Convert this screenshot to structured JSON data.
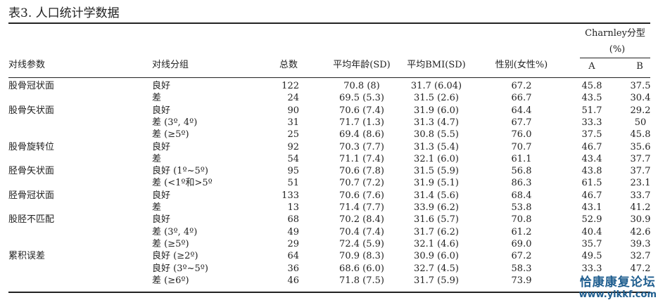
{
  "title": "表3. 人口统计学数据",
  "headers": {
    "param": "对线参数",
    "group": "对线分组",
    "total": "总数",
    "age": "平均年龄(SD)",
    "bmi": "平均BMI(SD)",
    "sex": "性别(女性%)",
    "charnley_line1": "Charnley分型",
    "charnley_line2": "(%)",
    "a": "A",
    "b": "B"
  },
  "rows": [
    {
      "param": "股骨冠状面",
      "group": "良好",
      "total": "122",
      "age": "70.8 (8)",
      "bmi": "31.7 (6.04)",
      "sex": "67.2",
      "a": "45.8",
      "b": "37.5"
    },
    {
      "param": "",
      "group": "差",
      "total": "24",
      "age": "69.5 (5.3)",
      "bmi": "31.5 (2.6)",
      "sex": "66.7",
      "a": "43.5",
      "b": "30.4"
    },
    {
      "param": "股骨矢状面",
      "group": "良好",
      "total": "90",
      "age": "70.6 (7.4)",
      "bmi": "31.9 (6.0)",
      "sex": "64.4",
      "a": "51.7",
      "b": "29.2"
    },
    {
      "param": "",
      "group": "差 (3º, 4º)",
      "total": "31",
      "age": "71.7 (1.3)",
      "bmi": "31.3 (4.7)",
      "sex": "67.7",
      "a": "33.3",
      "b": "50"
    },
    {
      "param": "",
      "group": "差 (≥5º)",
      "total": "25",
      "age": "69.4 (8.6)",
      "bmi": "30.8 (5.5)",
      "sex": "76.0",
      "a": "37.5",
      "b": "45.8"
    },
    {
      "param": "股骨旋转位",
      "group": "良好",
      "total": "92",
      "age": "70.3 (7.7)",
      "bmi": "31.3 (5.4)",
      "sex": "70.7",
      "a": "46.7",
      "b": "35.6"
    },
    {
      "param": "",
      "group": "差",
      "total": "54",
      "age": "71.1 (7.4)",
      "bmi": "32.1 (6.0)",
      "sex": "61.1",
      "a": "43.4",
      "b": "37.7"
    },
    {
      "param": "胫骨矢状面",
      "group": "良好 (1º~5º)",
      "total": "95",
      "age": "70.6 (7.8)",
      "bmi": "31.5 (5.9)",
      "sex": "56.8",
      "a": "43.8",
      "b": "37.7"
    },
    {
      "param": "",
      "group": "差 (<1º和>5º",
      "total": "51",
      "age": "70.7 (7.2)",
      "bmi": "31.9 (5.1)",
      "sex": "86.3",
      "a": "61.5",
      "b": "23.1"
    },
    {
      "param": "胫骨冠状面",
      "group": "良好",
      "total": "133",
      "age": "70.6 (7.6)",
      "bmi": "31.4 (5.6)",
      "sex": "68.4",
      "a": "46.7",
      "b": "33.7"
    },
    {
      "param": "",
      "group": "差",
      "total": "13",
      "age": "71.4 (7.7)",
      "bmi": "33.9 (6.2)",
      "sex": "53.8",
      "a": "43.1",
      "b": "41.2"
    },
    {
      "param": "股胫不匹配",
      "group": "良好",
      "total": "68",
      "age": "70.2 (8.4)",
      "bmi": "31.6 (5.7)",
      "sex": "70.8",
      "a": "52.9",
      "b": "30.9"
    },
    {
      "param": "",
      "group": "差 (3º, 4º)",
      "total": "49",
      "age": "70.4 (7.4)",
      "bmi": "31.7 (6.2)",
      "sex": "61.2",
      "a": "40.4",
      "b": "42.6"
    },
    {
      "param": "",
      "group": "差 (≥5º)",
      "total": "29",
      "age": "72.4 (5.9)",
      "bmi": "32.1 (4.6)",
      "sex": "69.0",
      "a": "35.7",
      "b": "39.3"
    },
    {
      "param": "累积误差",
      "group": "良好 (≥2º)",
      "total": "64",
      "age": "70.9 (8.3)",
      "bmi": "30.9 (6.0)",
      "sex": "67.2",
      "a": "49.5",
      "b": "32.7"
    },
    {
      "param": "",
      "group": "良好 (3º~5º)",
      "total": "36",
      "age": "68.6 (6.0)",
      "bmi": "32.7 (4.5)",
      "sex": "58.3",
      "a": "33.3",
      "b": "47.2"
    },
    {
      "param": "",
      "group": "差 (≥6º)",
      "total": "46",
      "age": "71.8 (7.5)",
      "bmi": "31.7 (5.9)",
      "sex": "73.9",
      "a": "",
      "b": ""
    }
  ],
  "watermark": {
    "line1": "恰康康复论坛",
    "line2": "www.yikkf.com",
    "color": "#1f5e8f"
  }
}
